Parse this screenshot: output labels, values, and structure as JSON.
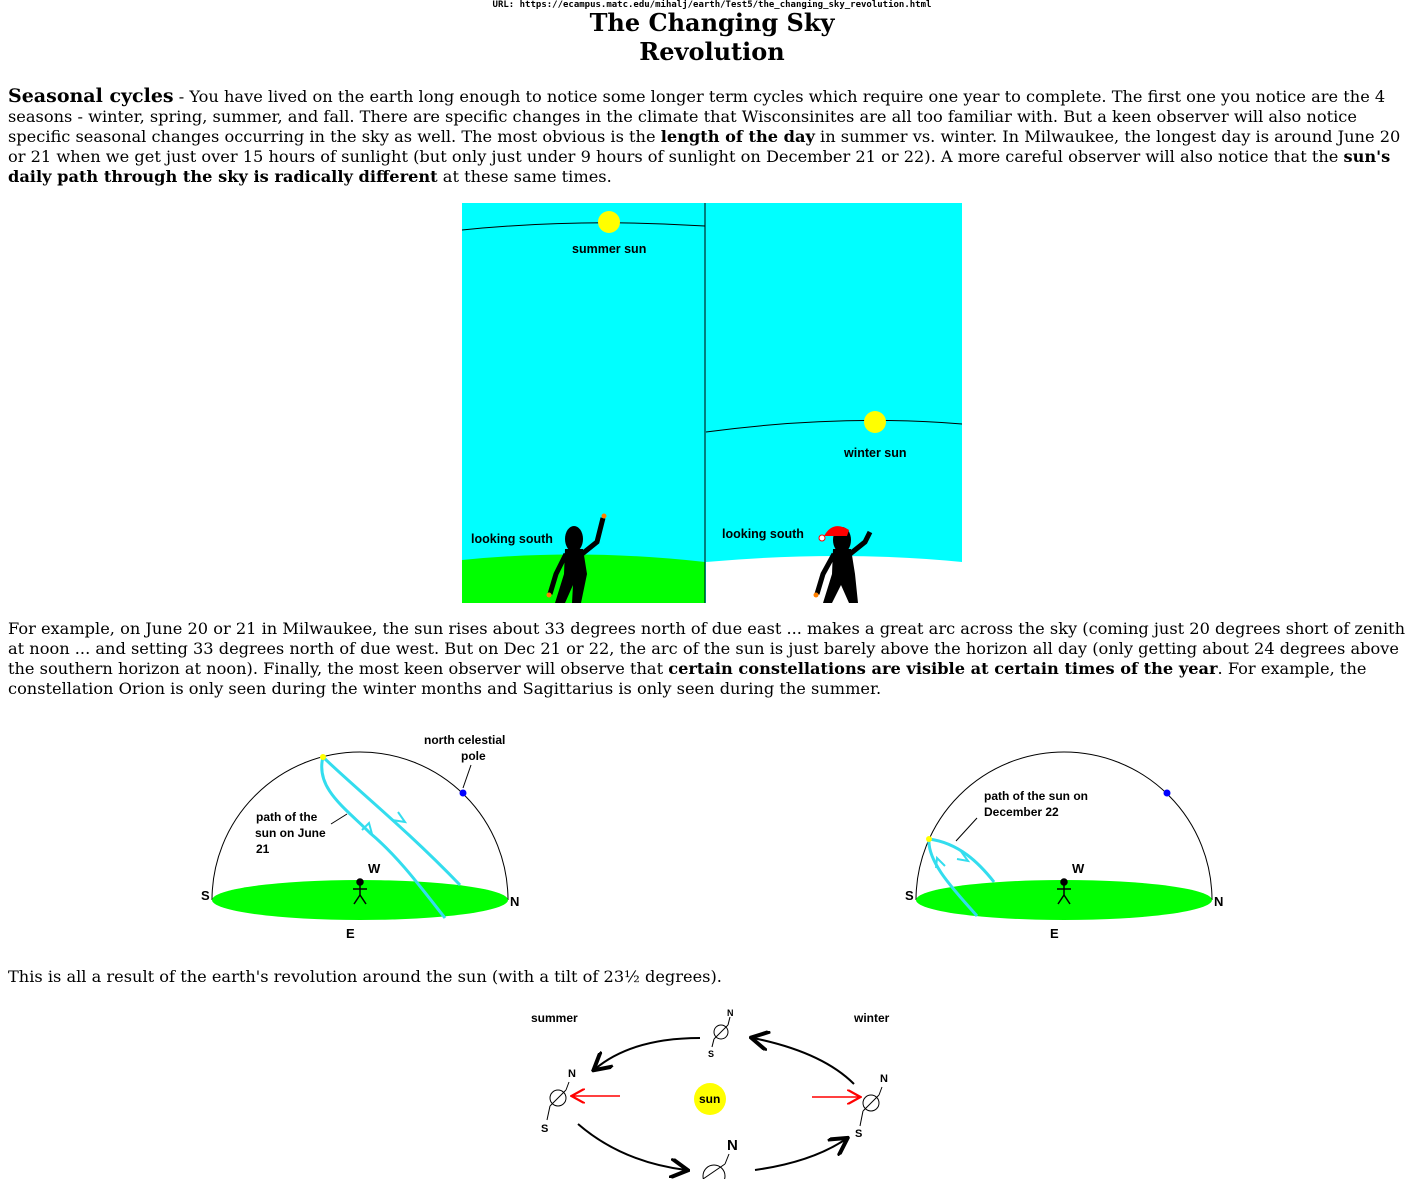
{
  "header": {
    "url_line": "URL: https://ecampus.matc.edu/mihalj/earth/Test5/the_changing_sky_revolution.html",
    "title_line1": "The Changing Sky",
    "title_line2": "Revolution"
  },
  "intro": {
    "lead": "Seasonal cycles",
    "t1": " - You have lived on the earth long enough to notice some longer term cycles which require one year to complete.  The first one you notice are the 4 seasons - winter, spring, summer, and fall.  There are specific changes in the climate that Wisconsinites are all too familiar with.  But a keen observer will also notice specific seasonal changes occurring in the sky as well.  The most obvious is the ",
    "b1": "length of the day",
    "t2": " in summer vs. winter.  In Milwaukee, the longest day is around June 20 or 21 when we get just over 15 hours of sunlight (but only just under 9 hours of sunlight on December 21 or 22).  A more careful observer will also notice that the ",
    "b2": "sun's daily path through the sky is radically different",
    "t3": " at these same times."
  },
  "sky_figure": {
    "summer_label": "summer sun",
    "winter_label": "winter sun",
    "looking_left": "looking south",
    "looking_right": "looking south",
    "sky_color": "#00ffff",
    "ground_color": "#00ff00",
    "sun_color": "#ffff00"
  },
  "example": {
    "t1": "For example, on June 20 or 21 in Milwaukee, the sun rises about 33 degrees north of due east ... makes a great arc across the sky (coming just 20 degrees short of zenith at noon ... and setting 33 degrees north of due west.  But on Dec 21 or 22, the arc of the sun is just barely above the horizon all day (only getting about 24 degrees above the southern horizon at noon).  Finally, the most keen observer will observe that ",
    "b1": "certain constellations are visible at certain times of the year",
    "t2": ".  For example, the constellation Orion is only seen during the winter months and Sagittarius is only seen during the summer."
  },
  "dome_june": {
    "ncp_line1": "north celestial",
    "ncp_line2": "pole",
    "path_line1": "path of the",
    "path_line2": "sun on June",
    "path_line3": "21",
    "west": "W",
    "south": "S",
    "north": "N",
    "east": "E"
  },
  "dome_dec": {
    "path_line1": "path of the sun on",
    "path_line2": "December 22",
    "west": "W",
    "south": "S",
    "north": "N",
    "east": "E"
  },
  "closing": {
    "text": "This is all a result of the earth's revolution around the sun (with a tilt of 23½ degrees)."
  },
  "orbit": {
    "summer": "summer",
    "winter": "winter",
    "sun": "sun",
    "n_top": "N",
    "s_top": "S",
    "n_left": "N",
    "s_left": "S",
    "n_right": "N",
    "s_right": "S",
    "n_bottom": "N",
    "arrow_color": "#ff0000"
  }
}
